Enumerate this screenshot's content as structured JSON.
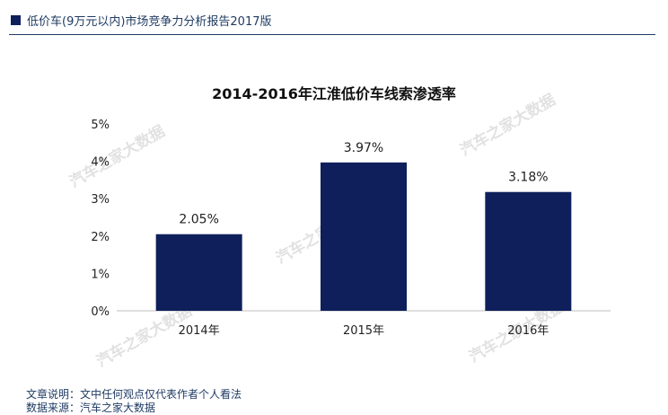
{
  "header": {
    "title": "低价车(9万元以内)市场竞争力分析报告2017版"
  },
  "colors": {
    "bar": "#0e1f5b",
    "header_accent": "#0e1f5b",
    "header_text": "#1f3b63"
  },
  "watermark": "汽车之家大数据",
  "chart_data": {
    "type": "bar",
    "title": "2014-2016年江淮低价车线索渗透率",
    "categories": [
      "2014年",
      "2015年",
      "2016年"
    ],
    "values": [
      2.05,
      3.97,
      3.18
    ],
    "value_labels": [
      "2.05%",
      "3.97%",
      "3.18%"
    ],
    "ylim": [
      0,
      5
    ],
    "yticks": [
      0,
      1,
      2,
      3,
      4,
      5
    ],
    "ytick_labels": [
      "0%",
      "1%",
      "2%",
      "3%",
      "4%",
      "5%"
    ],
    "xlabel": "",
    "ylabel": "",
    "grid": false,
    "legend": false
  },
  "footer": {
    "note": "文章说明：文中任何观点仅代表作者个人看法",
    "source": "数据来源：汽车之家大数据"
  }
}
